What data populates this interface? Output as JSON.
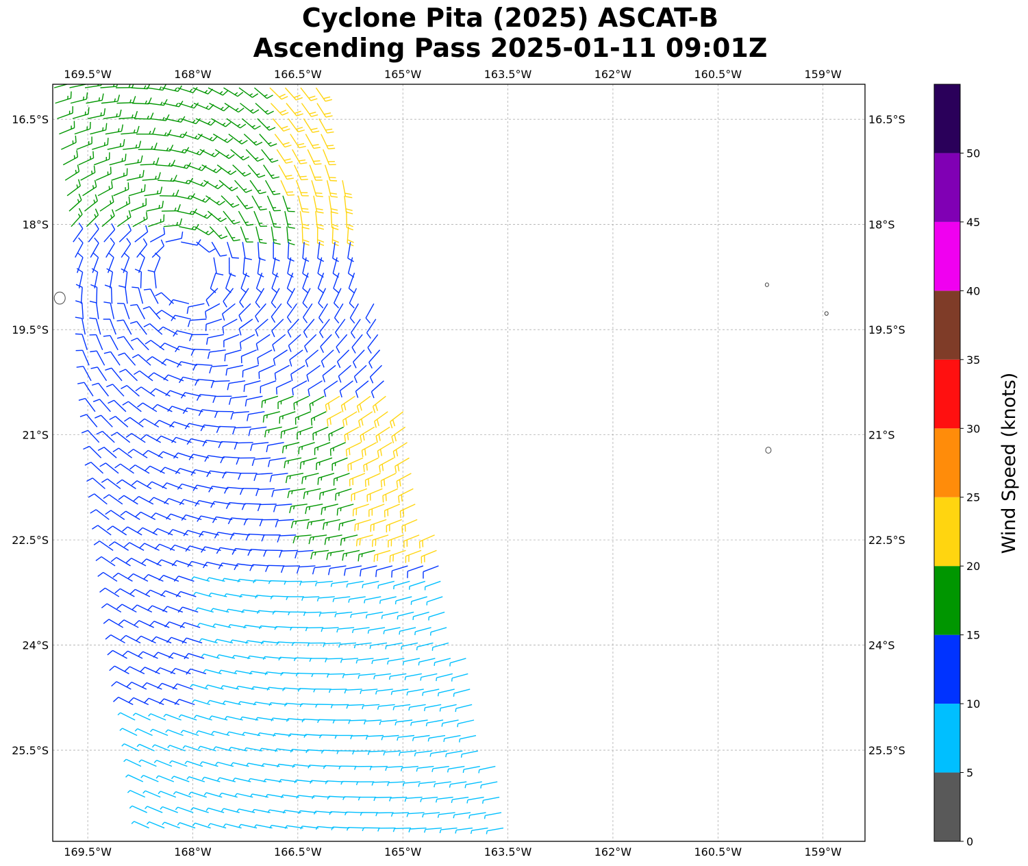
{
  "chart_data": {
    "type": "scatter",
    "subtype": "wind-barb map",
    "title_lines": [
      "Cyclone Pita (2025) ASCAT-B",
      "Ascending Pass 2025-01-11 09:01Z"
    ],
    "projection": "PlateCarree",
    "lon_range": [
      -170.0,
      -158.4
    ],
    "lat_range": [
      -26.8,
      -16.0
    ],
    "grid": true,
    "lon_ticks": [
      -169.5,
      -168.0,
      -166.5,
      -165.0,
      -163.5,
      -162.0,
      -160.5,
      -159.0
    ],
    "lon_tick_labels": [
      "169.5°W",
      "168°W",
      "166.5°W",
      "165°W",
      "163.5°W",
      "162°W",
      "160.5°W",
      "159°W"
    ],
    "lat_ticks": [
      -16.5,
      -18.0,
      -19.5,
      -21.0,
      -22.5,
      -24.0,
      -25.5
    ],
    "lat_tick_labels": [
      "16.5°S",
      "18°S",
      "19.5°S",
      "21°S",
      "22.5°S",
      "24°S",
      "25.5°S"
    ],
    "colorbar": {
      "label": "Wind Speed (knots)",
      "ticks": [
        0,
        5,
        10,
        15,
        20,
        25,
        30,
        35,
        40,
        45,
        50
      ],
      "range": [
        0,
        55
      ],
      "bins": [
        {
          "min": 0,
          "max": 5,
          "color": "#595959"
        },
        {
          "min": 5,
          "max": 10,
          "color": "#00bfff"
        },
        {
          "min": 10,
          "max": 15,
          "color": "#0033ff"
        },
        {
          "min": 15,
          "max": 20,
          "color": "#009600"
        },
        {
          "min": 20,
          "max": 25,
          "color": "#ffd510"
        },
        {
          "min": 25,
          "max": 30,
          "color": "#ff8c0a"
        },
        {
          "min": 30,
          "max": 35,
          "color": "#ff1010"
        },
        {
          "min": 35,
          "max": 40,
          "color": "#7f3c28"
        },
        {
          "min": 40,
          "max": 45,
          "color": "#f000f0"
        },
        {
          "min": 45,
          "max": 50,
          "color": "#8000b4"
        },
        {
          "min": 50,
          "max": 55,
          "color": "#2a005a"
        }
      ]
    },
    "swath": {
      "description": "ASCAT-B swath, NW-SE oriented; west edge at ~-170.0 lon, east edge from ~-166.2 (lat -16.0) to ~-163.4 (lat -26.8)",
      "west_edge_top": -170.0,
      "west_edge_bottom": -168.6,
      "east_edge_top": -166.2,
      "east_edge_bottom": -163.4,
      "spacing_deg": 0.22
    },
    "circulation_center": {
      "lon": -168.1,
      "lat": -18.7
    },
    "wind_regions": [
      {
        "region": "north of center / outer band",
        "speed_kt": "15-20",
        "category": "green"
      },
      {
        "region": "northeast swath edge near -16.5 to -17.5",
        "speed_kt": "20-25",
        "category": "yellow"
      },
      {
        "region": "eastern swath edge near -20.5 to -22.5",
        "speed_kt": "20-25",
        "category": "yellow"
      },
      {
        "region": "core and central swath",
        "speed_kt": "10-15",
        "category": "blue"
      },
      {
        "region": "southern swath -23 to -26.8",
        "speed_kt": "5-10",
        "category": "cyan"
      }
    ],
    "islands": [
      {
        "name": "",
        "lon": -169.9,
        "lat": -19.05
      },
      {
        "name": "",
        "lon": -159.8,
        "lat": -18.86
      },
      {
        "name": "",
        "lon": -158.95,
        "lat": -19.27
      },
      {
        "name": "",
        "lon": -159.78,
        "lat": -21.22
      }
    ]
  }
}
